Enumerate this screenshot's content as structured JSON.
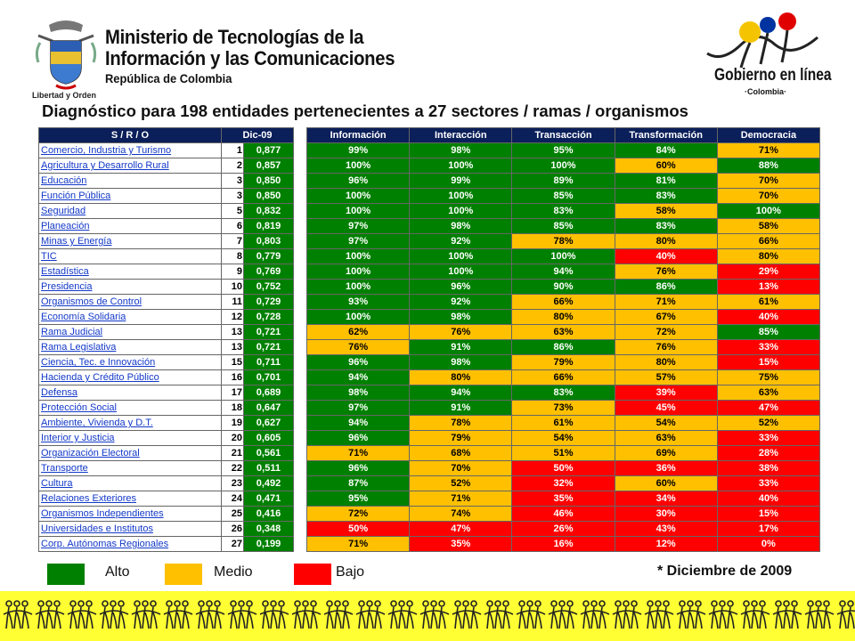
{
  "header": {
    "ministry_line1": "Ministerio de Tecnologías de la",
    "ministry_line2": "Información y las Comunicaciones",
    "ministry_line3": "República de Colombia",
    "coat_caption": "Libertad y Orden",
    "brand_main": "Gobierno en línea",
    "brand_sub": "·Colombia·"
  },
  "title": "Diagnóstico para 198 entidades pertenecientes a 27 sectores / ramas / organismos",
  "left_headers": [
    "S / R / O",
    "Dic-09"
  ],
  "right_headers": [
    "Información",
    "Interacción",
    "Transacción",
    "Transformación",
    "Democracia"
  ],
  "rows": [
    {
      "name": "Comercio, Industria y Turismo",
      "rank": "1",
      "score": "0,877",
      "vals": [
        "99%",
        "98%",
        "95%",
        "84%",
        "71%"
      ],
      "lv": [
        "a",
        "a",
        "a",
        "a",
        "m"
      ]
    },
    {
      "name": "Agricultura y Desarrollo Rural",
      "rank": "2",
      "score": "0,857",
      "vals": [
        "100%",
        "100%",
        "100%",
        "60%",
        "88%"
      ],
      "lv": [
        "a",
        "a",
        "a",
        "m",
        "a"
      ]
    },
    {
      "name": "Educación",
      "rank": "3",
      "score": "0,850",
      "vals": [
        "96%",
        "99%",
        "89%",
        "81%",
        "70%"
      ],
      "lv": [
        "a",
        "a",
        "a",
        "a",
        "m"
      ]
    },
    {
      "name": "Función Pública",
      "rank": "3",
      "score": "0,850",
      "vals": [
        "100%",
        "100%",
        "85%",
        "83%",
        "70%"
      ],
      "lv": [
        "a",
        "a",
        "a",
        "a",
        "m"
      ]
    },
    {
      "name": "Seguridad",
      "rank": "5",
      "score": "0,832",
      "vals": [
        "100%",
        "100%",
        "83%",
        "58%",
        "100%"
      ],
      "lv": [
        "a",
        "a",
        "a",
        "m",
        "a"
      ]
    },
    {
      "name": "Planeación",
      "rank": "6",
      "score": "0,819",
      "vals": [
        "97%",
        "98%",
        "85%",
        "83%",
        "58%"
      ],
      "lv": [
        "a",
        "a",
        "a",
        "a",
        "m"
      ]
    },
    {
      "name": "Minas y Energía",
      "rank": "7",
      "score": "0,803",
      "vals": [
        "97%",
        "92%",
        "78%",
        "80%",
        "66%"
      ],
      "lv": [
        "a",
        "a",
        "m",
        "m",
        "m"
      ]
    },
    {
      "name": "TIC",
      "rank": "8",
      "score": "0,779",
      "vals": [
        "100%",
        "100%",
        "100%",
        "40%",
        "80%"
      ],
      "lv": [
        "a",
        "a",
        "a",
        "b",
        "m"
      ]
    },
    {
      "name": "Estadística",
      "rank": "9",
      "score": "0,769",
      "vals": [
        "100%",
        "100%",
        "94%",
        "76%",
        "29%"
      ],
      "lv": [
        "a",
        "a",
        "a",
        "m",
        "b"
      ]
    },
    {
      "name": "Presidencia",
      "rank": "10",
      "score": "0,752",
      "vals": [
        "100%",
        "96%",
        "90%",
        "86%",
        "13%"
      ],
      "lv": [
        "a",
        "a",
        "a",
        "a",
        "b"
      ]
    },
    {
      "name": "Organismos de Control",
      "rank": "11",
      "score": "0,729",
      "vals": [
        "93%",
        "92%",
        "66%",
        "71%",
        "61%"
      ],
      "lv": [
        "a",
        "a",
        "m",
        "m",
        "m"
      ]
    },
    {
      "name": "Economía Solidaria",
      "rank": "12",
      "score": "0,728",
      "vals": [
        "100%",
        "98%",
        "80%",
        "67%",
        "40%"
      ],
      "lv": [
        "a",
        "a",
        "m",
        "m",
        "b"
      ]
    },
    {
      "name": "Rama Judicial",
      "rank": "13",
      "score": "0,721",
      "vals": [
        "62%",
        "76%",
        "63%",
        "72%",
        "85%"
      ],
      "lv": [
        "m",
        "m",
        "m",
        "m",
        "a"
      ]
    },
    {
      "name": "Rama Legislativa",
      "rank": "13",
      "score": "0,721",
      "vals": [
        "76%",
        "91%",
        "86%",
        "76%",
        "33%"
      ],
      "lv": [
        "m",
        "a",
        "a",
        "m",
        "b"
      ]
    },
    {
      "name": "Ciencia, Tec. e Innovación",
      "rank": "15",
      "score": "0,711",
      "vals": [
        "96%",
        "98%",
        "79%",
        "80%",
        "15%"
      ],
      "lv": [
        "a",
        "a",
        "m",
        "m",
        "b"
      ]
    },
    {
      "name": "Hacienda y Crédito Público",
      "rank": "16",
      "score": "0,701",
      "vals": [
        "94%",
        "80%",
        "66%",
        "57%",
        "75%"
      ],
      "lv": [
        "a",
        "m",
        "m",
        "m",
        "m"
      ]
    },
    {
      "name": "Defensa",
      "rank": "17",
      "score": "0,689",
      "vals": [
        "98%",
        "94%",
        "83%",
        "39%",
        "63%"
      ],
      "lv": [
        "a",
        "a",
        "a",
        "b",
        "m"
      ]
    },
    {
      "name": "Protección Social",
      "rank": "18",
      "score": "0,647",
      "vals": [
        "97%",
        "91%",
        "73%",
        "45%",
        "47%"
      ],
      "lv": [
        "a",
        "a",
        "m",
        "b",
        "b"
      ]
    },
    {
      "name": "Ambiente, Vivienda y D.T.",
      "rank": "19",
      "score": "0,627",
      "vals": [
        "94%",
        "78%",
        "61%",
        "54%",
        "52%"
      ],
      "lv": [
        "a",
        "m",
        "m",
        "m",
        "m"
      ]
    },
    {
      "name": "Interior y Justicia",
      "rank": "20",
      "score": "0,605",
      "vals": [
        "96%",
        "79%",
        "54%",
        "63%",
        "33%"
      ],
      "lv": [
        "a",
        "m",
        "m",
        "m",
        "b"
      ]
    },
    {
      "name": "Organización Electoral",
      "rank": "21",
      "score": "0,561",
      "vals": [
        "71%",
        "68%",
        "51%",
        "69%",
        "28%"
      ],
      "lv": [
        "m",
        "m",
        "m",
        "m",
        "b"
      ]
    },
    {
      "name": "Transporte",
      "rank": "22",
      "score": "0,511",
      "vals": [
        "96%",
        "70%",
        "50%",
        "36%",
        "38%"
      ],
      "lv": [
        "a",
        "m",
        "b",
        "b",
        "b"
      ]
    },
    {
      "name": "Cultura",
      "rank": "23",
      "score": "0,492",
      "vals": [
        "87%",
        "52%",
        "32%",
        "60%",
        "33%"
      ],
      "lv": [
        "a",
        "m",
        "b",
        "m",
        "b"
      ]
    },
    {
      "name": "Relaciones Exteriores",
      "rank": "24",
      "score": "0,471",
      "vals": [
        "95%",
        "71%",
        "35%",
        "34%",
        "40%"
      ],
      "lv": [
        "a",
        "m",
        "b",
        "b",
        "b"
      ]
    },
    {
      "name": "Organismos Independientes",
      "rank": "25",
      "score": "0,416",
      "vals": [
        "72%",
        "74%",
        "46%",
        "30%",
        "15%"
      ],
      "lv": [
        "m",
        "m",
        "b",
        "b",
        "b"
      ]
    },
    {
      "name": "Universidades e Institutos",
      "rank": "26",
      "score": "0,348",
      "vals": [
        "50%",
        "47%",
        "26%",
        "43%",
        "17%"
      ],
      "lv": [
        "b",
        "b",
        "b",
        "b",
        "b"
      ]
    },
    {
      "name": "Corp. Autónomas Regionales",
      "rank": "27",
      "score": "0,199",
      "vals": [
        "71%",
        "35%",
        "16%",
        "12%",
        "0%"
      ],
      "lv": [
        "m",
        "b",
        "b",
        "b",
        "b"
      ]
    }
  ],
  "legend": {
    "alto": "Alto",
    "medio": "Medio",
    "bajo": "Bajo"
  },
  "colors": {
    "alto": "#008000",
    "medio": "#ffc000",
    "bajo": "#ff0000",
    "header": "#0b1f5a"
  },
  "note": "* Diciembre de 2009"
}
